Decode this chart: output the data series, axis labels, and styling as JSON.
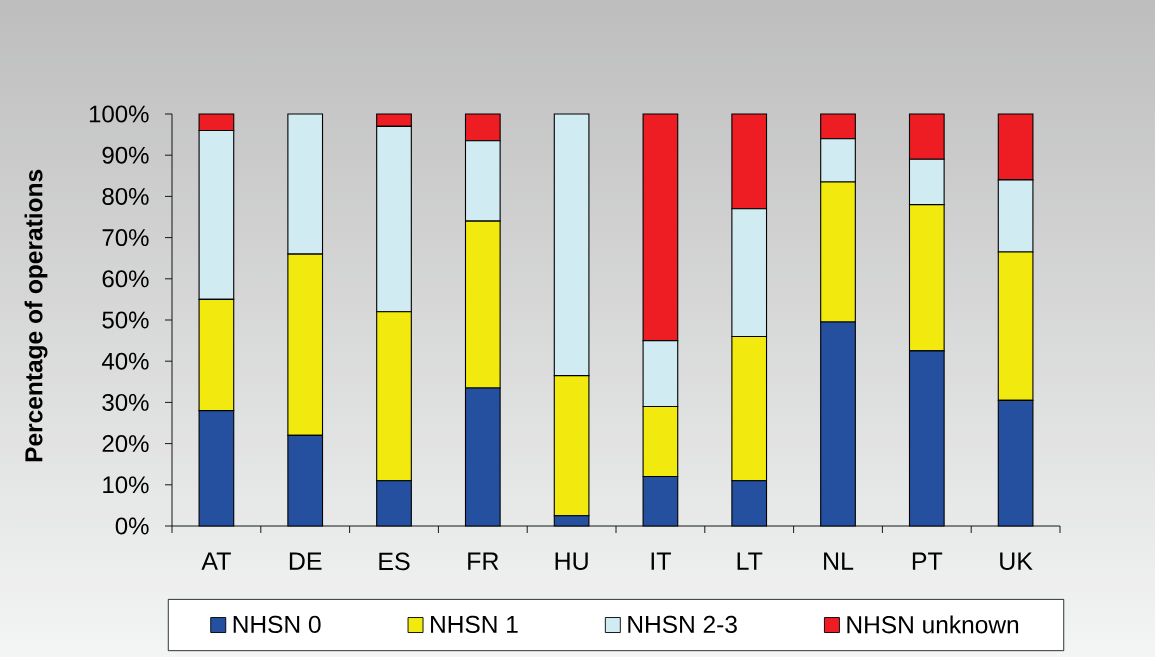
{
  "chart_data": {
    "type": "bar",
    "stacked": true,
    "ylabel": "Percentage of operations",
    "categories": [
      "AT",
      "DE",
      "ES",
      "FR",
      "HU",
      "IT",
      "LT",
      "NL",
      "PT",
      "UK"
    ],
    "series": [
      {
        "name": "NHSN 0",
        "color": "#2550a0",
        "values": [
          28,
          22,
          11,
          33.5,
          2.5,
          12,
          11,
          49.5,
          42.5,
          30.5
        ]
      },
      {
        "name": "NHSN 1",
        "color": "#f2ea0e",
        "values": [
          27,
          44,
          41,
          40.5,
          34,
          17,
          35,
          34,
          35.5,
          36
        ]
      },
      {
        "name": "NHSN 2-3",
        "color": "#d0ecf2",
        "values": [
          41,
          34,
          45,
          19.5,
          63.5,
          16,
          31,
          10.5,
          11,
          17.5
        ]
      },
      {
        "name": "NHSN unknown",
        "color": "#ee1d24",
        "values": [
          4,
          0,
          3,
          6.5,
          0,
          55,
          23,
          6,
          11,
          16
        ]
      }
    ],
    "ylim": [
      0,
      100
    ],
    "yticks": [
      {
        "value": 0,
        "label": "0%"
      },
      {
        "value": 10,
        "label": "10%"
      },
      {
        "value": 20,
        "label": "20%"
      },
      {
        "value": 30,
        "label": "30%"
      },
      {
        "value": 40,
        "label": "40%"
      },
      {
        "value": 50,
        "label": "50%"
      },
      {
        "value": 60,
        "label": "60%"
      },
      {
        "value": 70,
        "label": "70%"
      },
      {
        "value": 80,
        "label": "80%"
      },
      {
        "value": 90,
        "label": "90%"
      },
      {
        "value": 100,
        "label": "100%"
      }
    ],
    "legend": "bottom"
  }
}
